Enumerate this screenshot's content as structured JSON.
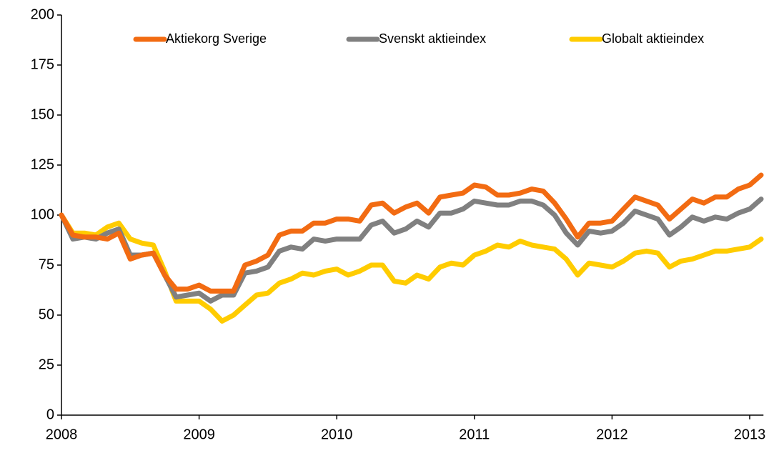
{
  "chart_data": {
    "type": "line",
    "x": [
      2008,
      2008.083,
      2008.167,
      2008.25,
      2008.333,
      2008.417,
      2008.5,
      2008.583,
      2008.667,
      2008.75,
      2008.833,
      2008.917,
      2009,
      2009.083,
      2009.167,
      2009.25,
      2009.333,
      2009.417,
      2009.5,
      2009.583,
      2009.667,
      2009.75,
      2009.833,
      2009.917,
      2010,
      2010.083,
      2010.167,
      2010.25,
      2010.333,
      2010.417,
      2010.5,
      2010.583,
      2010.667,
      2010.75,
      2010.833,
      2010.917,
      2011,
      2011.083,
      2011.167,
      2011.25,
      2011.333,
      2011.417,
      2011.5,
      2011.583,
      2011.667,
      2011.75,
      2011.833,
      2011.917,
      2012,
      2012.083,
      2012.167,
      2012.25,
      2012.333,
      2012.417,
      2012.5,
      2012.583,
      2012.667,
      2012.75,
      2012.833,
      2012.917,
      2013,
      2013.083
    ],
    "series": [
      {
        "name": "Aktiekorg Sverige",
        "color": "#f26b12",
        "values": [
          100,
          90,
          89,
          89,
          88,
          91,
          78,
          80,
          81,
          70,
          63,
          63,
          65,
          62,
          62,
          62,
          75,
          77,
          80,
          90,
          92,
          92,
          96,
          96,
          98,
          98,
          97,
          105,
          106,
          101,
          104,
          106,
          101,
          109,
          110,
          111,
          115,
          114,
          110,
          110,
          111,
          113,
          112,
          106,
          98,
          89,
          96,
          96,
          97,
          103,
          109,
          107,
          105,
          98,
          103,
          108,
          106,
          109,
          109,
          113,
          115,
          120
        ]
      },
      {
        "name": "Svenskt aktieindex",
        "color": "#808080",
        "values": [
          100,
          88,
          89,
          88,
          91,
          93,
          80,
          80,
          81,
          70,
          59,
          60,
          61,
          57,
          60,
          60,
          71,
          72,
          74,
          82,
          84,
          83,
          88,
          87,
          88,
          88,
          88,
          95,
          97,
          91,
          93,
          97,
          94,
          101,
          101,
          103,
          107,
          106,
          105,
          105,
          107,
          107,
          105,
          100,
          91,
          85,
          92,
          91,
          92,
          96,
          102,
          100,
          98,
          90,
          94,
          99,
          97,
          99,
          98,
          101,
          103,
          108
        ]
      },
      {
        "name": "Globalt aktieindex",
        "color": "#ffcc00",
        "values": [
          100,
          91,
          91,
          90,
          94,
          96,
          88,
          86,
          85,
          72,
          57,
          57,
          57,
          53,
          47,
          50,
          55,
          60,
          61,
          66,
          68,
          71,
          70,
          72,
          73,
          70,
          72,
          75,
          75,
          67,
          66,
          70,
          68,
          74,
          76,
          75,
          80,
          82,
          85,
          84,
          87,
          85,
          84,
          83,
          78,
          70,
          76,
          75,
          74,
          77,
          81,
          82,
          81,
          74,
          77,
          78,
          80,
          82,
          82,
          83,
          84,
          88
        ]
      }
    ],
    "xlim": [
      2008,
      2013.1
    ],
    "xticks": [
      2008,
      2009,
      2010,
      2011,
      2012,
      2013
    ],
    "ylim": [
      0,
      200
    ],
    "yticks": [
      0,
      25,
      50,
      75,
      100,
      125,
      150,
      175,
      200
    ],
    "grid": false,
    "legend": "top"
  }
}
